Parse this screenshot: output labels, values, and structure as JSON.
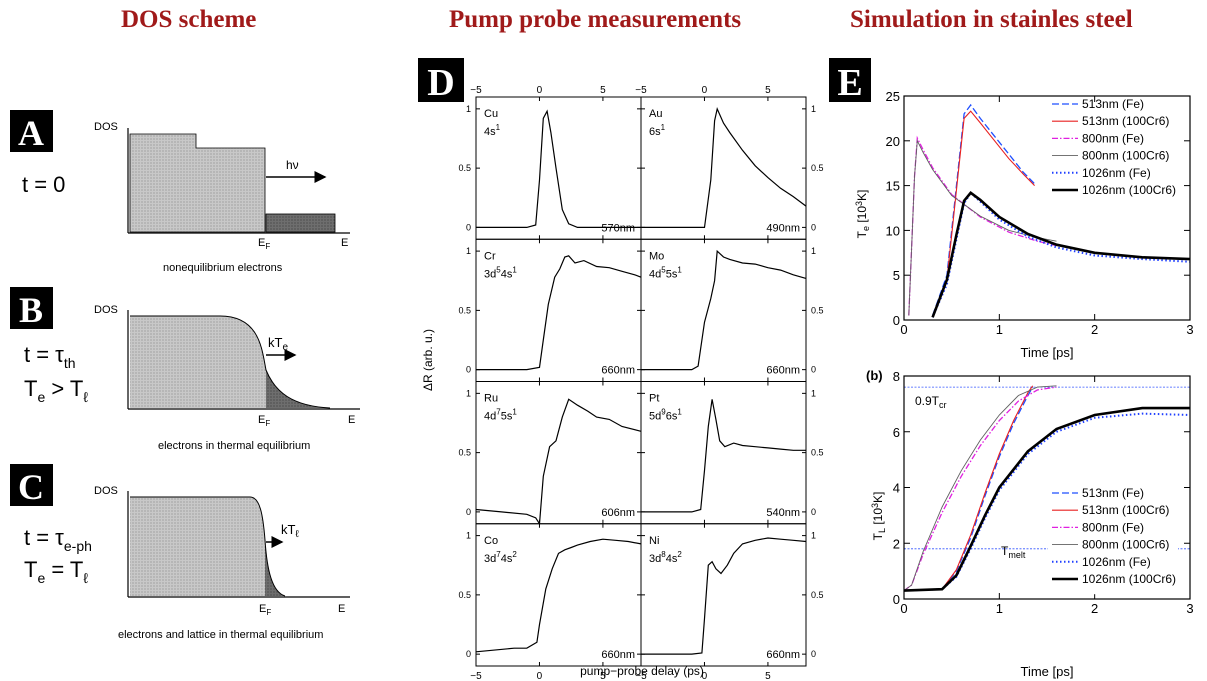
{
  "headings": {
    "dos": "DOS scheme",
    "pump": "Pump probe measurements",
    "sim": "Simulation in stainles steel"
  },
  "colors": {
    "heading": "#a01a1a",
    "fe513": "#1f4fff",
    "cr513": "#e82020",
    "fe800": "#e020e0",
    "cr800": "#606060",
    "fe1026": "#1f3fff",
    "cr1026": "#000000"
  },
  "panels": {
    "A": {
      "letter": "A",
      "t_label": "t = 0",
      "ylabel": "DOS",
      "arrow": "hν",
      "ef": "E",
      "ef_sub": "F",
      "e": "E",
      "caption": "nonequilibrium electrons"
    },
    "B": {
      "letter": "B",
      "t_main": "t = τ",
      "t_sub": "th",
      "cond_main": "T",
      "cond_sub": "e",
      "cond_rest": " > T",
      "cond_sub2": "ℓ",
      "ylabel": "DOS",
      "arrow_main": "kT",
      "arrow_sub": "e",
      "ef": "E",
      "ef_sub": "F",
      "e": "E",
      "caption": "electrons in thermal equilibrium"
    },
    "C": {
      "letter": "C",
      "t_main": "t = τ",
      "t_sub": "e-ph",
      "cond_main": "T",
      "cond_sub": "e",
      "cond_rest": " = T",
      "cond_sub2": "ℓ",
      "ylabel": "DOS",
      "arrow_main": "kT",
      "arrow_sub": "ℓ",
      "ef": "E",
      "ef_sub": "F",
      "e": "E",
      "caption": "electrons and lattice in thermal equilibrium"
    },
    "D": {
      "letter": "D",
      "ylabel": "ΔR (arb. u.)",
      "xlabel": "pump−probe delay (ps)",
      "x_ticks": [
        "−5",
        "0",
        "5"
      ],
      "y_ticks_left": [
        "1",
        "0.5",
        "0"
      ],
      "y_ticks_right": [
        "1",
        "0.5",
        "0"
      ],
      "cells": [
        {
          "metal": "Cu",
          "config": "4s",
          "config_sup": "1",
          "wavelength": "570nm"
        },
        {
          "metal": "Au",
          "config": "6s",
          "config_sup": "1",
          "wavelength": "490nm"
        },
        {
          "metal": "Cr",
          "config": "3d",
          "config_sup": "5",
          "config2": "4s",
          "config2_sup": "1",
          "wavelength": "660nm"
        },
        {
          "metal": "Mo",
          "config": "4d",
          "config_sup": "5",
          "config2": "5s",
          "config2_sup": "1",
          "wavelength": "660nm"
        },
        {
          "metal": "Ru",
          "config": "4d",
          "config_sup": "7",
          "config2": "5s",
          "config2_sup": "1",
          "wavelength": "606nm"
        },
        {
          "metal": "Pt",
          "config": "5d",
          "config_sup": "9",
          "config2": "6s",
          "config2_sup": "1",
          "wavelength": "540nm"
        },
        {
          "metal": "Co",
          "config": "3d",
          "config_sup": "7",
          "config2": "4s",
          "config2_sup": "2",
          "wavelength": "660nm"
        },
        {
          "metal": "Ni",
          "config": "3d",
          "config_sup": "8",
          "config2": "4s",
          "config2_sup": "2",
          "wavelength": "660nm"
        }
      ]
    },
    "E": {
      "letter": "E",
      "top": {
        "ylabel_main": "T",
        "ylabel_sub": "e",
        "ylabel_rest": " [10",
        "ylabel_sup": "3",
        "ylabel_end": "K]",
        "xlabel": "Time [ps]",
        "x_ticks": [
          "0",
          "1",
          "2",
          "3"
        ],
        "y_ticks": [
          "0",
          "5",
          "10",
          "15",
          "20",
          "25"
        ]
      },
      "bottom": {
        "tag": "(b)",
        "ylabel_main": "T",
        "ylabel_sub": "L",
        "ylabel_rest": " [10",
        "ylabel_sup": "3",
        "ylabel_end": "K]",
        "xlabel": "Time [ps]",
        "x_ticks": [
          "0",
          "1",
          "2",
          "3"
        ],
        "y_ticks": [
          "0",
          "2",
          "4",
          "6",
          "8"
        ],
        "ann_cr_main": "0.9T",
        "ann_cr_sub": "cr",
        "ann_melt_main": "T",
        "ann_melt_sub": "melt"
      },
      "legend": [
        "513nm (Fe)",
        "513nm (100Cr6)",
        "800nm (Fe)",
        "800nm (100Cr6)",
        "1026nm (Fe)",
        "1026nm (100Cr6)"
      ]
    }
  },
  "chart_data": [
    {
      "type": "line",
      "panel": "D",
      "xlabel": "pump−probe delay (ps)",
      "ylabel": "ΔR (arb. u.)",
      "xlim": [
        -5,
        8
      ],
      "ylim": [
        -0.1,
        1.1
      ],
      "series": [
        {
          "name": "Cu",
          "x": [
            -5,
            -1,
            -0.3,
            0,
            0.3,
            0.6,
            0.9,
            1.3,
            1.8,
            2.3,
            3,
            4,
            5,
            6,
            7,
            8
          ],
          "values": [
            0,
            0,
            0.02,
            0.4,
            0.92,
            0.98,
            0.8,
            0.5,
            0.15,
            0.03,
            0,
            0,
            0,
            0,
            0,
            0
          ]
        },
        {
          "name": "Au",
          "x": [
            -5,
            -1,
            0,
            0.5,
            0.8,
            1,
            1.5,
            2,
            3,
            4,
            5,
            6,
            7,
            8
          ],
          "values": [
            0,
            0,
            0,
            0.4,
            0.9,
            1.0,
            0.88,
            0.8,
            0.65,
            0.52,
            0.42,
            0.33,
            0.26,
            0.18
          ]
        },
        {
          "name": "Cr",
          "x": [
            -5,
            -1,
            0,
            0.3,
            0.7,
            1.2,
            1.6,
            2,
            2.3,
            2.8,
            3.5,
            4.5,
            5.5,
            6.5,
            7.5,
            8
          ],
          "values": [
            0,
            0,
            0.02,
            0.25,
            0.55,
            0.78,
            0.85,
            0.95,
            0.96,
            0.9,
            0.92,
            0.87,
            0.86,
            0.83,
            0.8,
            0.78
          ]
        },
        {
          "name": "Mo",
          "x": [
            -5,
            -1,
            -0.5,
            0,
            0.5,
            0.8,
            1,
            1.5,
            2,
            3,
            4,
            5,
            6,
            7,
            8
          ],
          "values": [
            0,
            0,
            0.03,
            0.4,
            0.6,
            0.75,
            1.0,
            0.95,
            0.93,
            0.9,
            0.89,
            0.86,
            0.84,
            0.8,
            0.77
          ]
        },
        {
          "name": "Ru",
          "x": [
            -5,
            -3,
            -1,
            -0.3,
            0,
            0.3,
            0.8,
            1.3,
            1.8,
            2.3,
            3,
            3.8,
            4.5,
            5.5,
            6.5,
            8
          ],
          "values": [
            0.02,
            0,
            -0.02,
            -0.05,
            -0.1,
            0.3,
            0.55,
            0.6,
            0.8,
            0.95,
            0.9,
            0.85,
            0.8,
            0.78,
            0.72,
            0.68
          ]
        },
        {
          "name": "Pt",
          "x": [
            -5,
            -1,
            -0.3,
            0,
            0.3,
            0.6,
            0.9,
            1.2,
            1.6,
            2.3,
            3,
            4,
            5,
            6,
            7,
            8
          ],
          "values": [
            0,
            0,
            0.02,
            0.35,
            0.72,
            0.95,
            0.78,
            0.6,
            0.55,
            0.58,
            0.56,
            0.55,
            0.54,
            0.53,
            0.52,
            0.52
          ]
        },
        {
          "name": "Co",
          "x": [
            -5,
            -2,
            -1,
            -0.2,
            0,
            0.5,
            1,
            1.5,
            2,
            2.5,
            3,
            4,
            5,
            6,
            7,
            8
          ],
          "values": [
            0.02,
            0.05,
            0.05,
            0.1,
            0.25,
            0.55,
            0.72,
            0.85,
            0.88,
            0.9,
            0.92,
            0.95,
            0.97,
            0.96,
            0.95,
            0.93
          ]
        },
        {
          "name": "Ni",
          "x": [
            -5,
            -1,
            -0.2,
            0,
            0.3,
            0.6,
            0.9,
            1.3,
            1.8,
            2.3,
            3,
            4,
            5,
            6,
            7,
            8
          ],
          "values": [
            0,
            0,
            0.01,
            0.3,
            0.75,
            0.78,
            0.72,
            0.68,
            0.75,
            0.85,
            0.93,
            0.96,
            0.98,
            0.97,
            0.96,
            0.95
          ]
        }
      ]
    },
    {
      "type": "line",
      "panel": "E-top",
      "xlabel": "Time [ps]",
      "ylabel": "Te [10^3K]",
      "xlim": [
        0,
        3
      ],
      "ylim": [
        0,
        25
      ],
      "series": [
        {
          "name": "513nm (Fe)",
          "x": [
            0.3,
            0.45,
            0.52,
            0.58,
            0.63,
            0.7,
            0.8,
            0.95,
            1.1,
            1.25,
            1.37
          ],
          "values": [
            0.5,
            5,
            12,
            18,
            23,
            24,
            22.5,
            20.5,
            18.5,
            16.5,
            15.2
          ]
        },
        {
          "name": "513nm (100Cr6)",
          "x": [
            0.3,
            0.45,
            0.52,
            0.58,
            0.63,
            0.7,
            0.8,
            0.95,
            1.1,
            1.25,
            1.37
          ],
          "values": [
            0.4,
            4.5,
            11.5,
            17.5,
            22.5,
            23.3,
            22,
            20,
            18,
            16.3,
            15
          ]
        },
        {
          "name": "800nm (Fe)",
          "x": [
            0.05,
            0.08,
            0.11,
            0.14,
            0.2,
            0.3,
            0.5,
            0.8,
            1.1,
            1.4,
            1.6
          ],
          "values": [
            0.5,
            8,
            16,
            20.3,
            19,
            17,
            14,
            11.5,
            9.8,
            8.8,
            8.3
          ]
        },
        {
          "name": "800nm (100Cr6)",
          "x": [
            0.05,
            0.08,
            0.11,
            0.14,
            0.2,
            0.3,
            0.5,
            0.8,
            1.1,
            1.4,
            1.6
          ],
          "values": [
            0.5,
            8,
            16,
            20,
            18.7,
            16.8,
            13.9,
            11.6,
            10,
            9.2,
            8.8
          ]
        },
        {
          "name": "1026nm (Fe)",
          "x": [
            0.3,
            0.45,
            0.55,
            0.63,
            0.7,
            0.8,
            1,
            1.3,
            1.6,
            2,
            2.5,
            3
          ],
          "values": [
            0.3,
            4,
            9,
            13,
            14.2,
            13.2,
            11.2,
            9.3,
            8.1,
            7.2,
            6.8,
            6.5
          ]
        },
        {
          "name": "1026nm (100Cr6)",
          "x": [
            0.3,
            0.45,
            0.55,
            0.63,
            0.7,
            0.8,
            1,
            1.3,
            1.6,
            2,
            2.5,
            3
          ],
          "values": [
            0.3,
            4.5,
            9.5,
            13.3,
            14.2,
            13.4,
            11.5,
            9.6,
            8.4,
            7.5,
            7,
            6.8
          ]
        }
      ]
    },
    {
      "type": "line",
      "panel": "E-bottom",
      "xlabel": "Time [ps]",
      "ylabel": "TL [10^3K]",
      "xlim": [
        0,
        3
      ],
      "ylim": [
        0,
        8
      ],
      "reference_lines": [
        {
          "label": "0.9Tcr",
          "y": 7.6
        },
        {
          "label": "Tmelt",
          "y": 1.8
        }
      ],
      "series": [
        {
          "name": "513nm (Fe)",
          "x": [
            0,
            0.4,
            0.55,
            0.7,
            0.85,
            1,
            1.15,
            1.3,
            1.35
          ],
          "values": [
            0.3,
            0.35,
            1,
            2.2,
            3.7,
            5.1,
            6.3,
            7.3,
            7.6
          ]
        },
        {
          "name": "513nm (100Cr6)",
          "x": [
            0,
            0.4,
            0.55,
            0.7,
            0.85,
            1,
            1.15,
            1.3,
            1.35
          ],
          "values": [
            0.3,
            0.35,
            1.05,
            2.3,
            3.8,
            5.2,
            6.4,
            7.4,
            7.65
          ]
        },
        {
          "name": "800nm (Fe)",
          "x": [
            0,
            0.08,
            0.2,
            0.4,
            0.6,
            0.8,
            1,
            1.2,
            1.4,
            1.6
          ],
          "values": [
            0.3,
            0.5,
            1.6,
            3.1,
            4.4,
            5.5,
            6.4,
            7.1,
            7.5,
            7.6
          ]
        },
        {
          "name": "800nm (100Cr6)",
          "x": [
            0,
            0.08,
            0.2,
            0.4,
            0.6,
            0.8,
            1,
            1.2,
            1.4,
            1.6
          ],
          "values": [
            0.3,
            0.5,
            1.7,
            3.3,
            4.6,
            5.7,
            6.6,
            7.3,
            7.6,
            7.65
          ]
        },
        {
          "name": "1026nm (Fe)",
          "x": [
            0,
            0.4,
            0.55,
            0.7,
            0.85,
            1,
            1.3,
            1.6,
            2,
            2.5,
            3
          ],
          "values": [
            0.3,
            0.35,
            0.8,
            1.8,
            2.9,
            3.9,
            5.2,
            6.0,
            6.5,
            6.65,
            6.6
          ]
        },
        {
          "name": "1026nm (100Cr6)",
          "x": [
            0,
            0.4,
            0.55,
            0.7,
            0.85,
            1,
            1.3,
            1.6,
            2,
            2.5,
            3
          ],
          "values": [
            0.3,
            0.35,
            0.85,
            1.9,
            3.0,
            4.0,
            5.3,
            6.1,
            6.6,
            6.85,
            6.85
          ]
        }
      ]
    }
  ]
}
